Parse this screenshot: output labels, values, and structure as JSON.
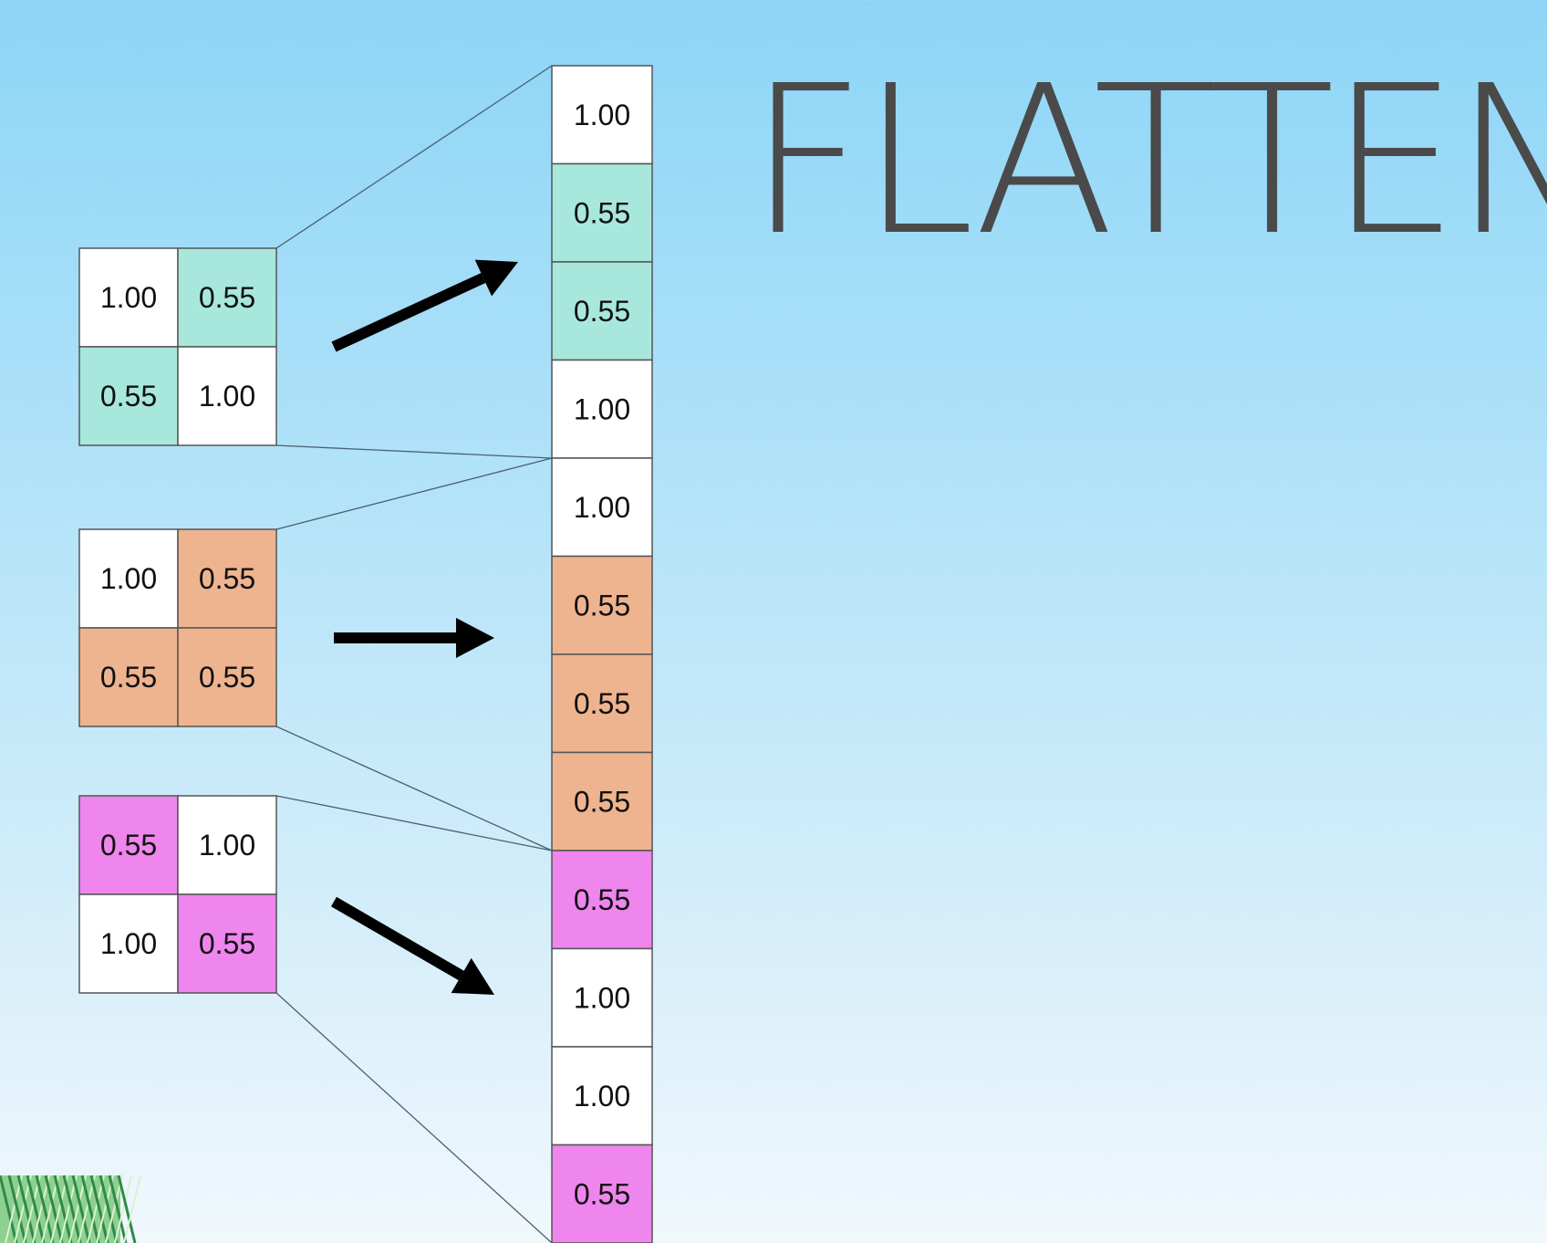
{
  "title": "FLATTEN",
  "colors": {
    "white": "#ffffff",
    "teal": "#a8e8dc",
    "orange": "#eeb48f",
    "magenta": "#ee86ee",
    "border": "#555555",
    "arrow": "#000000",
    "title": "#4a4a4a"
  },
  "matrices": [
    {
      "name": "teal-matrix",
      "cells": [
        [
          "1.00",
          "white"
        ],
        [
          "0.55",
          "teal"
        ],
        [
          "0.55",
          "teal"
        ],
        [
          "1.00",
          "white"
        ]
      ]
    },
    {
      "name": "orange-matrix",
      "cells": [
        [
          "1.00",
          "white"
        ],
        [
          "0.55",
          "orange"
        ],
        [
          "0.55",
          "orange"
        ],
        [
          "0.55",
          "orange"
        ]
      ]
    },
    {
      "name": "magenta-matrix",
      "cells": [
        [
          "0.55",
          "magenta"
        ],
        [
          "1.00",
          "white"
        ],
        [
          "1.00",
          "white"
        ],
        [
          "0.55",
          "magenta"
        ]
      ]
    }
  ],
  "column": [
    [
      "1.00",
      "white"
    ],
    [
      "0.55",
      "teal"
    ],
    [
      "0.55",
      "teal"
    ],
    [
      "1.00",
      "white"
    ],
    [
      "1.00",
      "white"
    ],
    [
      "0.55",
      "orange"
    ],
    [
      "0.55",
      "orange"
    ],
    [
      "0.55",
      "orange"
    ],
    [
      "0.55",
      "magenta"
    ],
    [
      "1.00",
      "white"
    ],
    [
      "1.00",
      "white"
    ],
    [
      "0.55",
      "magenta"
    ]
  ]
}
